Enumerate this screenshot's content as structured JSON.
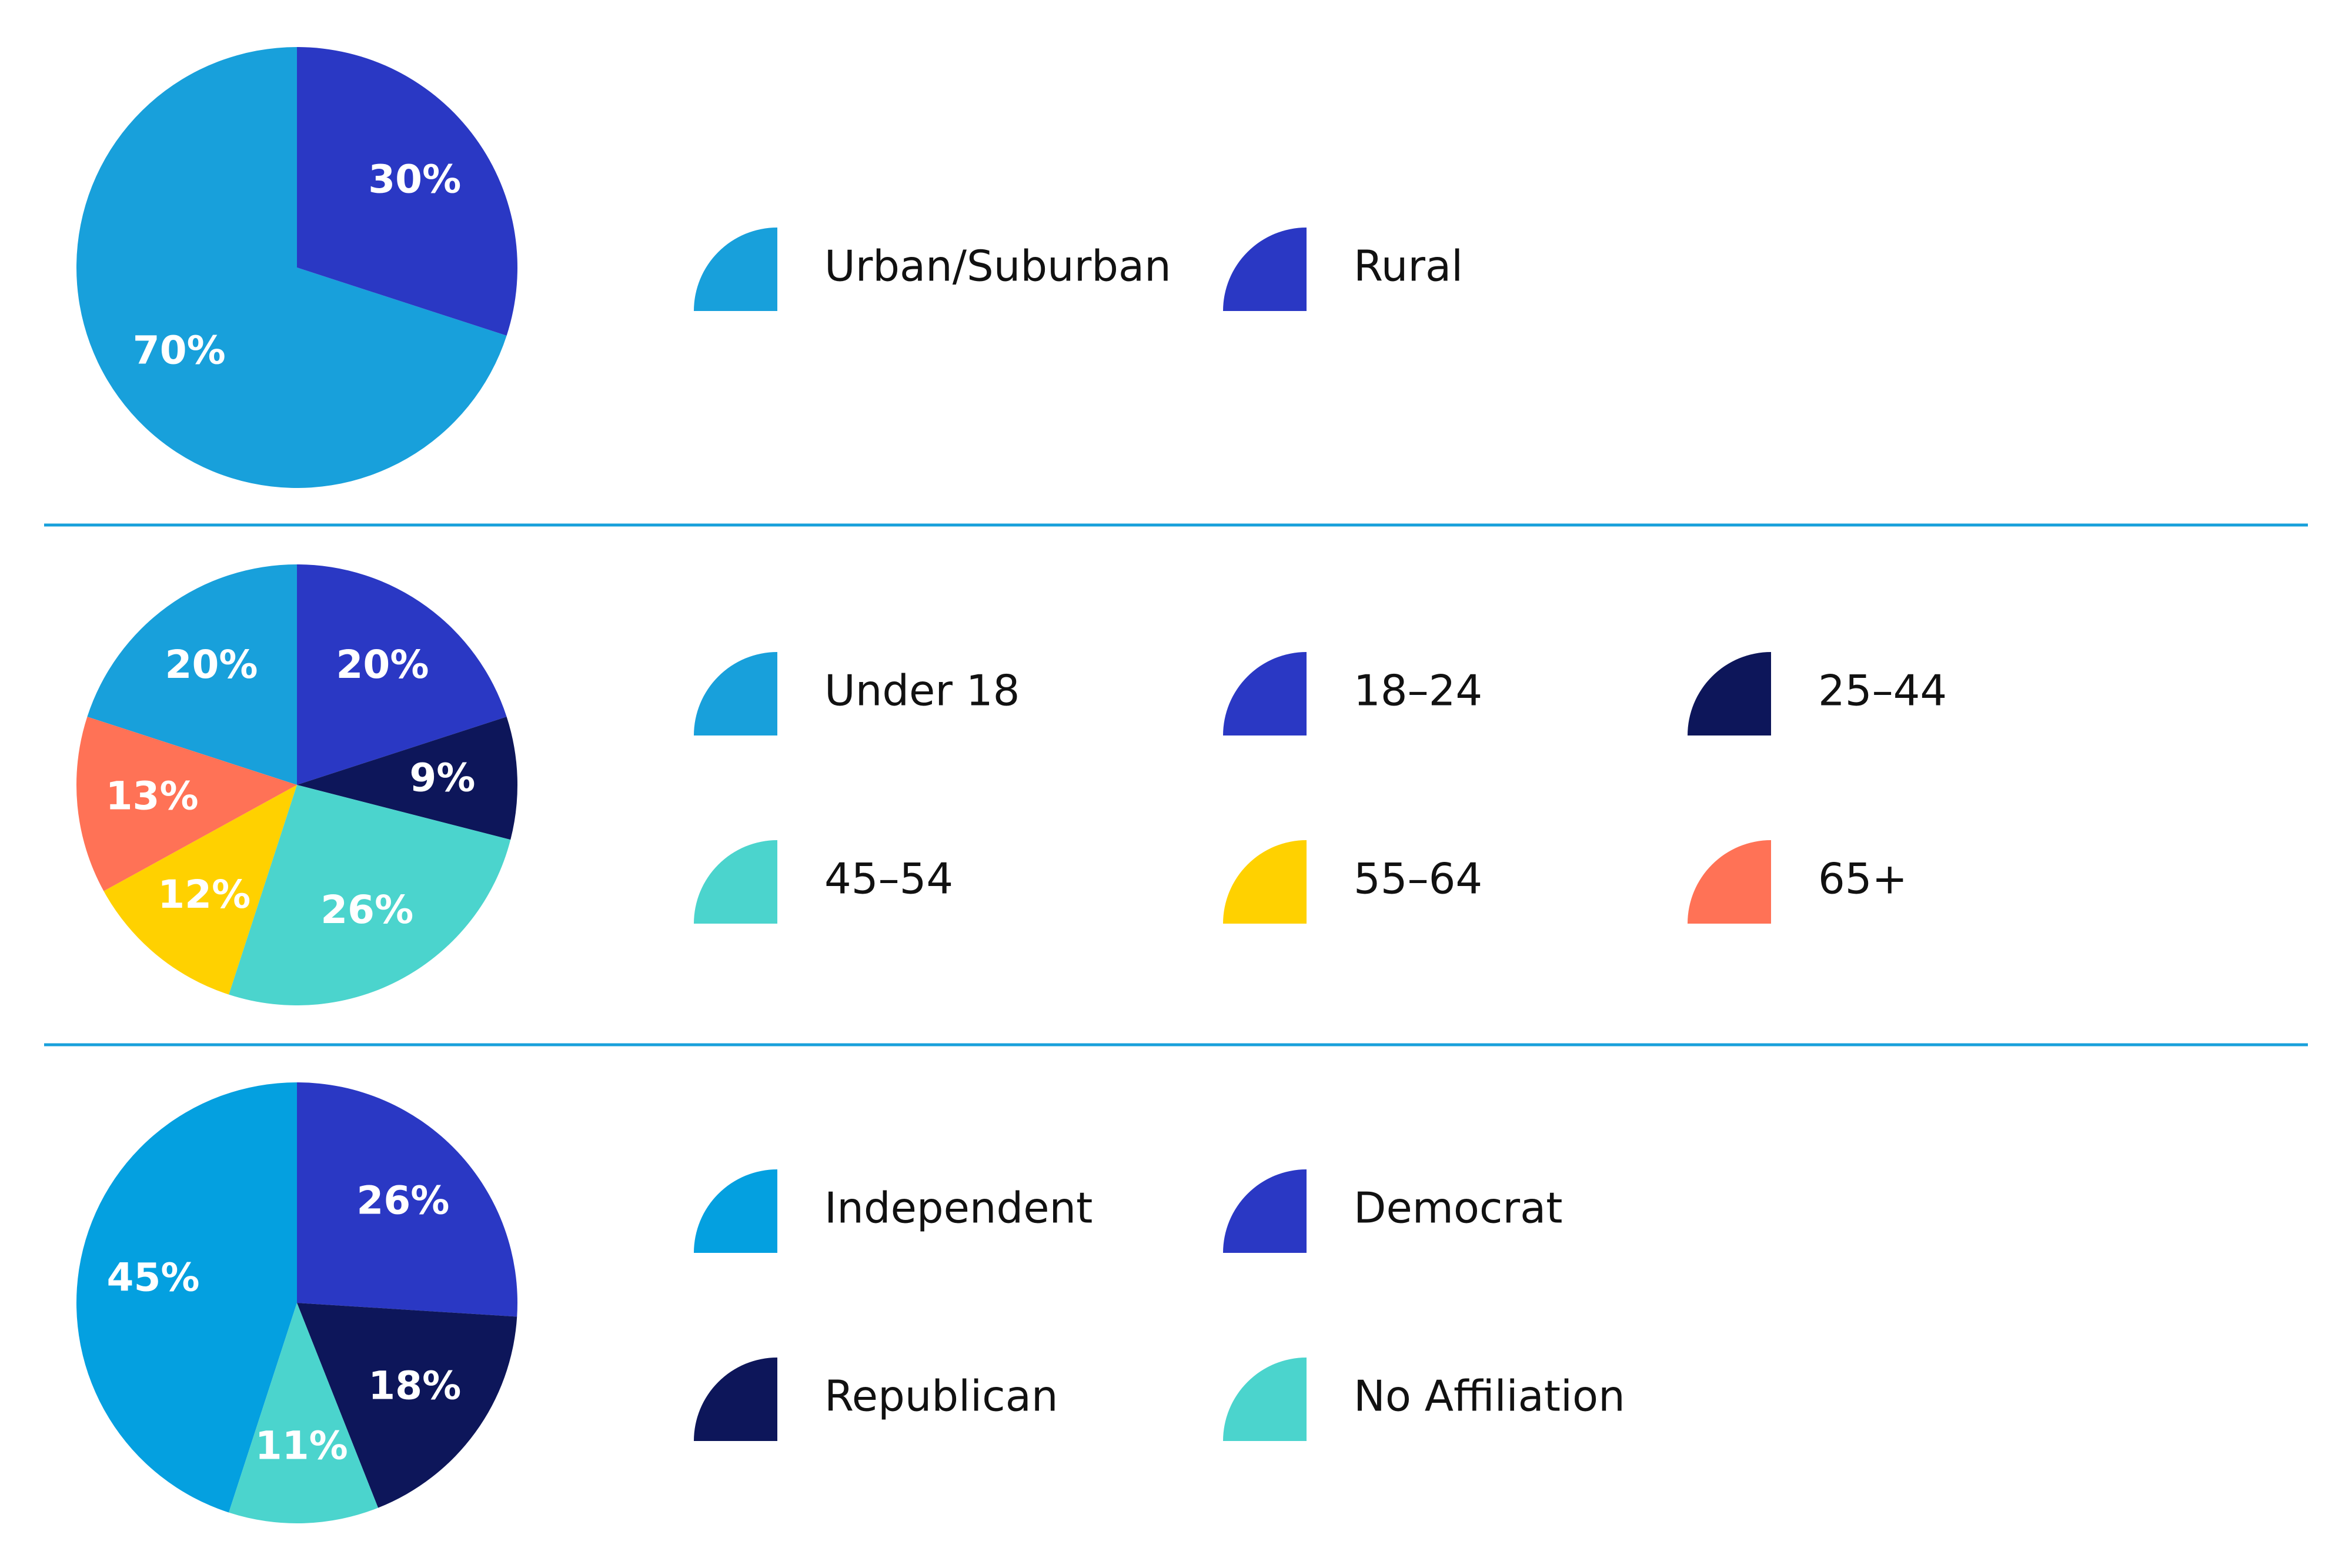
{
  "chart_data": [
    {
      "type": "pie",
      "categories": [
        "Urban/Suburban",
        "Rural"
      ],
      "values": [
        70,
        30
      ],
      "value_labels": [
        "70%",
        "30%"
      ],
      "colors": [
        "#18A0DB",
        "#2A38C4"
      ],
      "legend": "right"
    },
    {
      "type": "pie",
      "categories": [
        "Under 18",
        "18–24",
        "25–44",
        "45–54",
        "55–64",
        "65+"
      ],
      "values": [
        20,
        20,
        9,
        26,
        12,
        13
      ],
      "value_labels": [
        "20%",
        "20%",
        "9%",
        "26%",
        "12%",
        "13%"
      ],
      "colors": [
        "#18A0DB",
        "#2A38C4",
        "#0D165A",
        "#4BD4CD",
        "#FFD100",
        "#FF7256"
      ],
      "legend": "right"
    },
    {
      "type": "pie",
      "categories": [
        "Independent",
        "Democrat",
        "Republican",
        "No Affiliation"
      ],
      "values": [
        45,
        26,
        18,
        11
      ],
      "value_labels": [
        "45%",
        "26%",
        "18%",
        "11%"
      ],
      "colors": [
        "#04A0E0",
        "#2A38C4",
        "#0D165A",
        "#4BD4CD"
      ],
      "legend": "right"
    }
  ],
  "divider_color": "#18A0DB"
}
